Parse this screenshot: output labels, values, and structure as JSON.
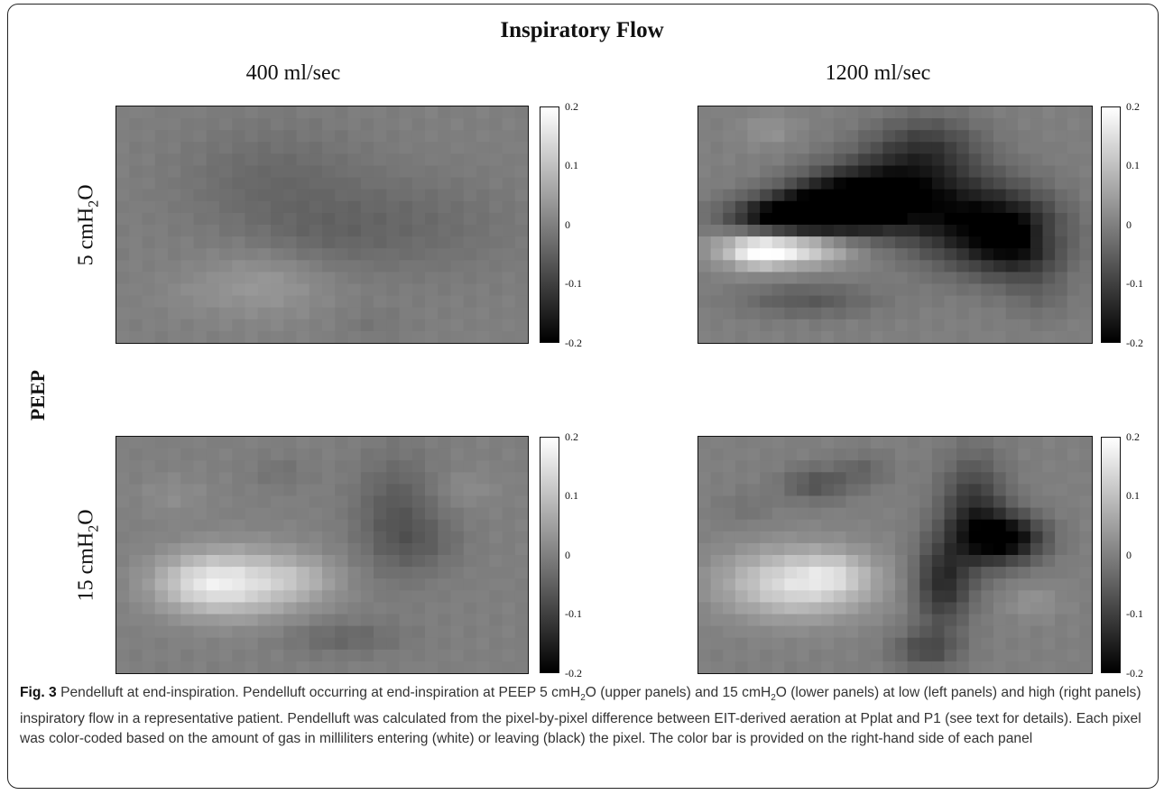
{
  "figure": {
    "main_title": "Inspiratory Flow",
    "col_titles": [
      "400 ml/sec",
      "1200 ml/sec"
    ],
    "row_labels": [
      {
        "pre": "5 cmH",
        "sub": "2",
        "post": "O"
      },
      {
        "pre": "15 cmH",
        "sub": "2",
        "post": "O"
      }
    ],
    "side_label": "PEEP",
    "colorbar": {
      "min": -0.2,
      "max": 0.2,
      "ticks": [
        "0.2",
        "0.1",
        "0",
        "-0.1",
        "-0.2"
      ],
      "colors": {
        "high": "#ffffff",
        "mid": "#808080",
        "low": "#000000"
      }
    },
    "panels": [
      {
        "name": "peep5-flow400",
        "blobs": [
          [
            0.38,
            0.32,
            0.16,
            0.17,
            -0.035
          ],
          [
            0.72,
            0.5,
            0.18,
            0.15,
            -0.03
          ],
          [
            0.5,
            0.55,
            0.12,
            0.1,
            -0.02
          ],
          [
            0.36,
            0.75,
            0.11,
            0.1,
            0.04
          ],
          [
            0.18,
            0.8,
            0.06,
            0.06,
            0.01
          ],
          [
            0.62,
            0.92,
            0.06,
            0.05,
            -0.015
          ]
        ]
      },
      {
        "name": "peep5-flow1200",
        "blobs": [
          [
            0.22,
            0.47,
            0.1,
            0.06,
            -0.2
          ],
          [
            0.35,
            0.42,
            0.1,
            0.08,
            -0.18
          ],
          [
            0.48,
            0.38,
            0.12,
            0.11,
            -0.18
          ],
          [
            0.58,
            0.18,
            0.1,
            0.1,
            -0.1
          ],
          [
            0.72,
            0.5,
            0.12,
            0.13,
            -0.17
          ],
          [
            0.82,
            0.58,
            0.08,
            0.1,
            -0.12
          ],
          [
            0.22,
            0.6,
            0.11,
            0.05,
            0.19
          ],
          [
            0.15,
            0.62,
            0.05,
            0.05,
            0.08
          ],
          [
            0.28,
            0.82,
            0.12,
            0.05,
            -0.06
          ],
          [
            0.88,
            0.55,
            0.04,
            0.05,
            0.04
          ],
          [
            0.87,
            0.8,
            0.06,
            0.08,
            -0.03
          ],
          [
            0.18,
            0.1,
            0.05,
            0.05,
            0.03
          ]
        ]
      },
      {
        "name": "peep15-flow400",
        "blobs": [
          [
            0.3,
            0.62,
            0.12,
            0.1,
            0.13
          ],
          [
            0.2,
            0.62,
            0.08,
            0.08,
            0.07
          ],
          [
            0.45,
            0.6,
            0.07,
            0.06,
            0.04
          ],
          [
            0.68,
            0.33,
            0.07,
            0.17,
            -0.06
          ],
          [
            0.75,
            0.45,
            0.07,
            0.08,
            -0.03
          ],
          [
            0.55,
            0.85,
            0.1,
            0.05,
            -0.04
          ],
          [
            0.4,
            0.15,
            0.05,
            0.05,
            -0.02
          ],
          [
            0.14,
            0.25,
            0.06,
            0.06,
            0.02
          ],
          [
            0.85,
            0.22,
            0.05,
            0.05,
            0.02
          ]
        ]
      },
      {
        "name": "peep15-flow1200",
        "blobs": [
          [
            0.25,
            0.62,
            0.13,
            0.1,
            0.15
          ],
          [
            0.35,
            0.58,
            0.06,
            0.06,
            0.05
          ],
          [
            0.7,
            0.32,
            0.06,
            0.16,
            -0.12
          ],
          [
            0.78,
            0.43,
            0.07,
            0.07,
            -0.2
          ],
          [
            0.62,
            0.62,
            0.05,
            0.13,
            -0.13
          ],
          [
            0.58,
            0.9,
            0.06,
            0.06,
            -0.08
          ],
          [
            0.3,
            0.2,
            0.06,
            0.05,
            -0.07
          ],
          [
            0.42,
            0.14,
            0.05,
            0.05,
            -0.04
          ],
          [
            0.85,
            0.7,
            0.05,
            0.05,
            0.03
          ],
          [
            0.12,
            0.3,
            0.05,
            0.05,
            -0.02
          ]
        ]
      }
    ]
  },
  "caption": {
    "label": "Fig. 3",
    "text_a": " Pendelluft at end-inspiration. Pendelluft occurring at end-inspiration at PEEP 5 cmH",
    "sub_a": "2",
    "text_b": "O (upper panels) and 15 cmH",
    "sub_b": "2",
    "text_c": "O (lower panels) at low (left panels) and high (right panels) inspiratory flow in a representative patient. Pendelluft was calculated from the pixel-by-pixel difference between EIT-derived aeration at Pplat and P1 (see text for details). Each pixel was color-coded based on the amount of gas in milliliters entering (white) or leaving (black) the pixel. The color bar is provided on the right-hand side of each panel"
  }
}
